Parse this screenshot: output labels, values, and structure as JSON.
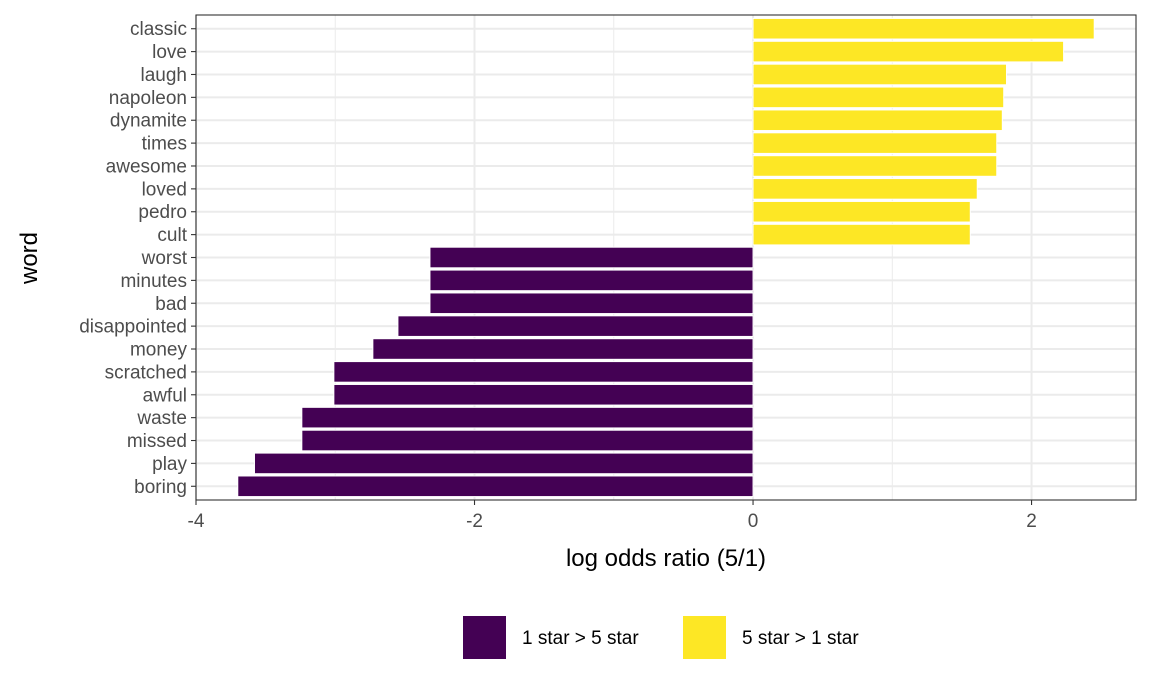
{
  "chart_data": {
    "type": "bar",
    "orientation": "horizontal",
    "xlabel": "log odds ratio (5/1)",
    "ylabel": "word",
    "xlim": [
      -4.0,
      2.75
    ],
    "xticks": [
      -4,
      -2,
      0,
      2
    ],
    "xtick_labels": [
      "-4",
      "-2",
      "0",
      "2"
    ],
    "grid": true,
    "legend_position": "bottom",
    "colors": {
      "1 star > 5 star": "#440154",
      "5 star > 1 star": "#FDE725"
    },
    "legend": [
      "1 star > 5 star",
      "5 star > 1 star"
    ],
    "categories": [
      "classic",
      "love",
      "laugh",
      "napoleon",
      "dynamite",
      "times",
      "awesome",
      "loved",
      "pedro",
      "cult",
      "worst",
      "minutes",
      "bad",
      "disappointed",
      "money",
      "scratched",
      "awful",
      "waste",
      "missed",
      "play",
      "boring"
    ],
    "values": [
      2.45,
      2.23,
      1.82,
      1.8,
      1.79,
      1.75,
      1.75,
      1.61,
      1.56,
      1.56,
      -2.32,
      -2.32,
      -2.32,
      -2.55,
      -2.73,
      -3.01,
      -3.01,
      -3.24,
      -3.24,
      -3.58,
      -3.7
    ],
    "groups": [
      "5 star > 1 star",
      "5 star > 1 star",
      "5 star > 1 star",
      "5 star > 1 star",
      "5 star > 1 star",
      "5 star > 1 star",
      "5 star > 1 star",
      "5 star > 1 star",
      "5 star > 1 star",
      "5 star > 1 star",
      "1 star > 5 star",
      "1 star > 5 star",
      "1 star > 5 star",
      "1 star > 5 star",
      "1 star > 5 star",
      "1 star > 5 star",
      "1 star > 5 star",
      "1 star > 5 star",
      "1 star > 5 star",
      "1 star > 5 star",
      "1 star > 5 star"
    ]
  }
}
